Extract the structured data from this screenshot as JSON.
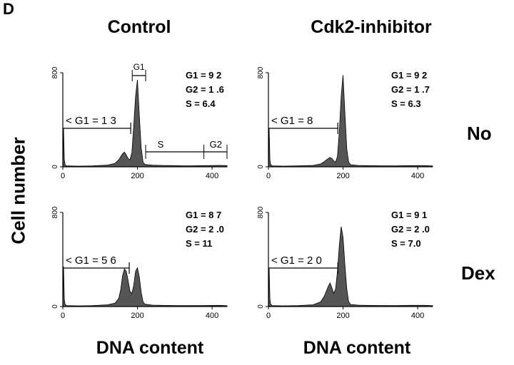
{
  "figure": {
    "panel_letter": "D",
    "column_titles": [
      "Control",
      "Cdk2-inhibitor"
    ],
    "row_labels": [
      "No",
      "Dex"
    ],
    "y_axis_label": "Cell number",
    "x_axis_labels": [
      "DNA content",
      "DNA content"
    ]
  },
  "colors": {
    "fill": "#555555",
    "line": "#000000",
    "background": "#ffffff"
  },
  "chart_data": [
    {
      "type": "area",
      "panel": "Control / No",
      "xlim": [
        0,
        440
      ],
      "ylim": [
        0,
        800
      ],
      "xticks": [
        "0",
        "200",
        "400"
      ],
      "yticks": [
        "0",
        "800"
      ],
      "x": [
        0,
        2,
        4,
        6,
        8,
        10,
        40,
        80,
        120,
        140,
        150,
        160,
        165,
        170,
        175,
        180,
        185,
        190,
        195,
        200,
        205,
        210,
        215,
        220,
        240,
        260,
        300,
        340,
        380,
        420,
        440
      ],
      "y": [
        0,
        330,
        60,
        20,
        10,
        8,
        6,
        8,
        15,
        30,
        60,
        110,
        125,
        100,
        70,
        60,
        120,
        350,
        600,
        740,
        430,
        160,
        40,
        20,
        14,
        12,
        10,
        8,
        10,
        12,
        10
      ],
      "stats": [
        "G1 = 9 2",
        "G2 = 1 .6",
        "S     = 6.4"
      ],
      "gate_label": "< G1 = 1 3",
      "phase_labels": [
        "G1",
        "S",
        "G2"
      ]
    },
    {
      "type": "area",
      "panel": "Cdk2-inhibitor / No",
      "xlim": [
        0,
        440
      ],
      "ylim": [
        0,
        800
      ],
      "xticks": [
        "0",
        "200",
        "400"
      ],
      "yticks": [
        "0",
        "800"
      ],
      "x": [
        0,
        2,
        4,
        6,
        10,
        40,
        80,
        120,
        140,
        150,
        160,
        165,
        170,
        175,
        180,
        185,
        190,
        195,
        200,
        205,
        210,
        215,
        220,
        240,
        260,
        300,
        340,
        380,
        420,
        440
      ],
      "y": [
        0,
        330,
        60,
        20,
        8,
        6,
        8,
        12,
        25,
        45,
        70,
        80,
        70,
        50,
        40,
        90,
        300,
        600,
        780,
        450,
        150,
        40,
        18,
        12,
        10,
        9,
        8,
        10,
        10,
        8
      ],
      "stats": [
        "G1 = 9 2",
        "G2 = 1 .7",
        "S     = 6.3"
      ],
      "gate_label": "< G1 = 8"
    },
    {
      "type": "area",
      "panel": "Control / Dex",
      "xlim": [
        0,
        440
      ],
      "ylim": [
        0,
        800
      ],
      "xticks": [
        "0",
        "200",
        "400"
      ],
      "yticks": [
        "0",
        "800"
      ],
      "x": [
        0,
        2,
        4,
        6,
        10,
        40,
        80,
        120,
        140,
        150,
        155,
        160,
        165,
        170,
        175,
        180,
        185,
        190,
        195,
        200,
        205,
        210,
        215,
        220,
        240,
        260,
        300,
        340,
        380,
        420,
        440
      ],
      "y": [
        0,
        340,
        60,
        20,
        8,
        6,
        8,
        15,
        30,
        70,
        140,
        260,
        320,
        300,
        220,
        130,
        110,
        180,
        300,
        330,
        250,
        120,
        40,
        20,
        12,
        10,
        9,
        8,
        9,
        10,
        8
      ],
      "stats": [
        "G1 = 8 7",
        "G2 = 2 .0",
        "S     = 11"
      ],
      "gate_label": "< G1 = 5 6"
    },
    {
      "type": "area",
      "panel": "Cdk2-inhibitor / Dex",
      "xlim": [
        0,
        440
      ],
      "ylim": [
        0,
        800
      ],
      "xticks": [
        "0",
        "200",
        "400"
      ],
      "yticks": [
        "0",
        "800"
      ],
      "x": [
        0,
        2,
        4,
        6,
        10,
        40,
        80,
        120,
        140,
        150,
        160,
        165,
        170,
        175,
        180,
        185,
        190,
        195,
        200,
        205,
        210,
        215,
        220,
        240,
        260,
        300,
        340,
        380,
        420,
        440
      ],
      "y": [
        0,
        330,
        60,
        20,
        8,
        6,
        8,
        15,
        40,
        90,
        170,
        200,
        160,
        110,
        150,
        300,
        520,
        680,
        590,
        350,
        150,
        40,
        18,
        12,
        10,
        9,
        8,
        10,
        10,
        8
      ],
      "stats": [
        "G1 = 9 1",
        "G2 = 2 .0",
        "S     = 7.0"
      ],
      "gate_label": "< G1 = 2 0"
    }
  ]
}
